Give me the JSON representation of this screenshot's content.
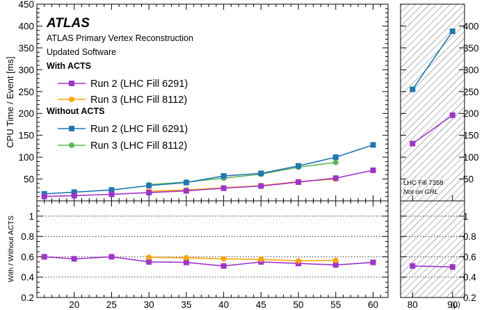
{
  "chart_data": [
    {
      "type": "line",
      "panel": "main",
      "ylabel": "CPU Time / Event [ms]",
      "xlabel": "",
      "xlim": [
        15,
        62
      ],
      "ylim": [
        0,
        450
      ],
      "y_ticks": [
        50,
        100,
        150,
        200,
        250,
        300,
        350,
        400,
        450
      ],
      "x_ticks": [
        20,
        25,
        30,
        35,
        40,
        45,
        50,
        55,
        60
      ],
      "legend_placement": "top-left",
      "annotations": {
        "experiment": "ATLAS",
        "line1": "ATLAS Primary Vertex Reconstruction",
        "line2": "Updated Software",
        "group_with": "With ACTS",
        "group_without": "Without ACTS"
      },
      "series": [
        {
          "name": "Run 2 (LHC Fill 6291)",
          "group": "with",
          "color": "#a033cc",
          "marker": "square",
          "x": [
            16,
            20,
            25,
            30,
            35,
            40,
            45,
            50,
            55,
            60
          ],
          "y": [
            10,
            12,
            15,
            19,
            23,
            29,
            34,
            43,
            52,
            70
          ]
        },
        {
          "name": "Run 3 (LHC Fill 8112)",
          "group": "with",
          "color": "#ffa500",
          "marker": "circle",
          "x": [
            30,
            35,
            40,
            45,
            50,
            55
          ],
          "y": [
            22,
            25,
            30,
            35,
            44,
            50
          ]
        },
        {
          "name": "Run 2 (LHC Fill 6291)",
          "group": "without",
          "color": "#1f77b4",
          "marker": "square",
          "x": [
            16,
            20,
            25,
            30,
            35,
            40,
            45,
            50,
            55,
            60
          ],
          "y": [
            16,
            20,
            25,
            35,
            42,
            57,
            63,
            80,
            100,
            128
          ]
        },
        {
          "name": "Run 3 (LHC Fill 8112)",
          "group": "without",
          "color": "#5cb85c",
          "marker": "circle",
          "x": [
            30,
            35,
            40,
            45,
            50,
            55
          ],
          "y": [
            37,
            43,
            52,
            61,
            77,
            88
          ]
        }
      ]
    },
    {
      "type": "line",
      "panel": "ratio",
      "ylabel": "With / Without ACTS",
      "xlim": [
        15,
        62
      ],
      "ylim": [
        0.2,
        1.15
      ],
      "y_ticks": [
        0.2,
        0.4,
        0.6,
        0.8,
        1
      ],
      "x_ticks": [
        20,
        25,
        30,
        35,
        40,
        45,
        50,
        55,
        60
      ],
      "grid": "dotted at 0.4, 0.6, 0.8, 1",
      "series": [
        {
          "color": "#a033cc",
          "marker": "square",
          "x": [
            16,
            20,
            25,
            30,
            35,
            40,
            45,
            50,
            55,
            60
          ],
          "y": [
            0.6,
            0.58,
            0.6,
            0.55,
            0.545,
            0.51,
            0.55,
            0.535,
            0.52,
            0.545
          ]
        },
        {
          "color": "#ffa500",
          "marker": "circle",
          "x": [
            30,
            35,
            40,
            45,
            50,
            55
          ],
          "y": [
            0.595,
            0.59,
            0.58,
            0.575,
            0.56,
            0.565
          ]
        }
      ]
    },
    {
      "type": "line",
      "panel": "side-main",
      "xlim": [
        77,
        93
      ],
      "ylim": [
        0,
        450
      ],
      "y_ticks": [
        50,
        100,
        150,
        200,
        250,
        300,
        350,
        400,
        450
      ],
      "hatched": true,
      "annotation_1": "LHC Fill 7358",
      "annotation_2": "Not on GRL",
      "series": [
        {
          "color": "#1f77b4",
          "marker": "square",
          "x": [
            80,
            90
          ],
          "y": [
            255,
            388
          ]
        },
        {
          "color": "#a033cc",
          "marker": "square",
          "x": [
            80,
            90
          ],
          "y": [
            131,
            196
          ]
        }
      ]
    },
    {
      "type": "line",
      "panel": "side-ratio",
      "xlim": [
        77,
        93
      ],
      "ylim": [
        0.2,
        1.15
      ],
      "x_ticks": [
        80,
        90
      ],
      "y_ticks": [
        0.2,
        0.4,
        0.6,
        0.8,
        1
      ],
      "xlabel": "⟨μ⟩",
      "hatched": true,
      "series": [
        {
          "color": "#a033cc",
          "marker": "square",
          "x": [
            80,
            90
          ],
          "y": [
            0.51,
            0.5
          ]
        }
      ]
    }
  ]
}
